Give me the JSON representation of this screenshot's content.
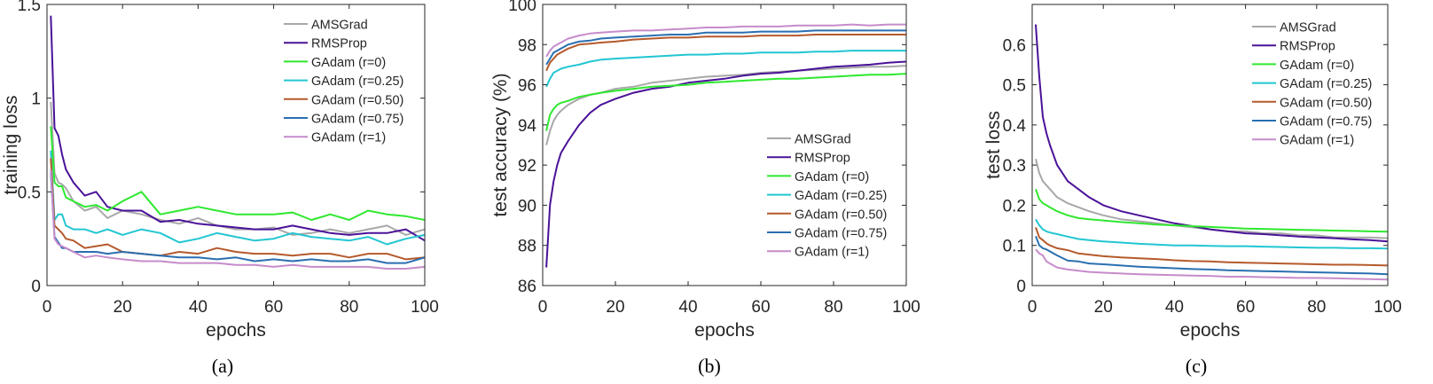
{
  "colors": {
    "AMSGrad": "#a8a8a8",
    "RMSProp": "#4a1298",
    "GAdam (r=0)": "#2fe82f",
    "GAdam (r=0.25)": "#22c6d2",
    "GAdam (r=0.50)": "#b55a2c",
    "GAdam (r=0.75)": "#2a6fb0",
    "GAdam (r=1)": "#c68ccb"
  },
  "chart_data": [
    {
      "type": "line",
      "caption": "(a)",
      "xlabel": "epochs",
      "ylabel": "training loss",
      "xlim": [
        0,
        100
      ],
      "ylim": [
        0,
        1.5
      ],
      "xticks": [
        0,
        20,
        40,
        60,
        80,
        100
      ],
      "yticks": [
        0,
        0.5,
        1,
        1.5
      ],
      "ytick_labels": [
        "0",
        "0.5",
        "1",
        "1.5"
      ],
      "grid": false,
      "legend": "top-right",
      "x": [
        1,
        2,
        3,
        4,
        5,
        7,
        10,
        13,
        16,
        20,
        25,
        30,
        35,
        40,
        45,
        50,
        55,
        60,
        65,
        70,
        75,
        80,
        85,
        90,
        95,
        100
      ],
      "series": [
        {
          "name": "AMSGrad",
          "values": [
            0.98,
            0.6,
            0.55,
            0.54,
            0.52,
            0.45,
            0.4,
            0.42,
            0.36,
            0.4,
            0.38,
            0.35,
            0.33,
            0.36,
            0.32,
            0.3,
            0.3,
            0.31,
            0.27,
            0.28,
            0.3,
            0.28,
            0.3,
            0.32,
            0.27,
            0.3
          ]
        },
        {
          "name": "RMSProp",
          "values": [
            1.44,
            0.84,
            0.8,
            0.7,
            0.62,
            0.55,
            0.48,
            0.5,
            0.42,
            0.4,
            0.4,
            0.34,
            0.35,
            0.33,
            0.32,
            0.31,
            0.3,
            0.3,
            0.32,
            0.3,
            0.28,
            0.27,
            0.28,
            0.28,
            0.3,
            0.24
          ]
        },
        {
          "name": "GAdam (r=0)",
          "values": [
            0.85,
            0.55,
            0.53,
            0.53,
            0.47,
            0.45,
            0.42,
            0.43,
            0.4,
            0.45,
            0.5,
            0.38,
            0.4,
            0.42,
            0.4,
            0.38,
            0.38,
            0.38,
            0.39,
            0.35,
            0.38,
            0.35,
            0.4,
            0.38,
            0.37,
            0.35
          ]
        },
        {
          "name": "GAdam (r=0.25)",
          "values": [
            0.72,
            0.35,
            0.38,
            0.38,
            0.32,
            0.3,
            0.3,
            0.28,
            0.3,
            0.27,
            0.3,
            0.28,
            0.23,
            0.25,
            0.28,
            0.26,
            0.24,
            0.25,
            0.28,
            0.26,
            0.25,
            0.24,
            0.26,
            0.22,
            0.25,
            0.27
          ]
        },
        {
          "name": "GAdam (r=0.50)",
          "values": [
            0.68,
            0.32,
            0.3,
            0.28,
            0.25,
            0.24,
            0.2,
            0.21,
            0.22,
            0.18,
            0.17,
            0.16,
            0.18,
            0.17,
            0.2,
            0.18,
            0.17,
            0.17,
            0.16,
            0.17,
            0.17,
            0.15,
            0.17,
            0.17,
            0.14,
            0.15
          ]
        },
        {
          "name": "GAdam (r=0.75)",
          "values": [
            0.6,
            0.26,
            0.23,
            0.2,
            0.2,
            0.18,
            0.18,
            0.18,
            0.17,
            0.18,
            0.17,
            0.16,
            0.15,
            0.15,
            0.14,
            0.15,
            0.13,
            0.14,
            0.13,
            0.14,
            0.13,
            0.13,
            0.14,
            0.12,
            0.12,
            0.15
          ]
        },
        {
          "name": "GAdam (r=1)",
          "values": [
            0.62,
            0.25,
            0.22,
            0.21,
            0.2,
            0.18,
            0.15,
            0.16,
            0.15,
            0.14,
            0.13,
            0.13,
            0.12,
            0.12,
            0.12,
            0.11,
            0.11,
            0.1,
            0.11,
            0.1,
            0.1,
            0.1,
            0.1,
            0.09,
            0.09,
            0.1
          ]
        }
      ]
    },
    {
      "type": "line",
      "caption": "(b)",
      "xlabel": "epochs",
      "ylabel": "test accuracy (%)",
      "xlim": [
        0,
        100
      ],
      "ylim": [
        86,
        100
      ],
      "xticks": [
        0,
        20,
        40,
        60,
        80,
        100
      ],
      "yticks": [
        86,
        88,
        90,
        92,
        94,
        96,
        98,
        100
      ],
      "ytick_labels": [
        "86",
        "88",
        "90",
        "92",
        "94",
        "96",
        "98",
        "100"
      ],
      "grid": false,
      "legend": "bottom-right",
      "x": [
        1,
        2,
        3,
        4,
        5,
        7,
        10,
        13,
        16,
        20,
        25,
        30,
        35,
        40,
        45,
        50,
        55,
        60,
        65,
        70,
        75,
        80,
        85,
        90,
        95,
        100
      ],
      "series": [
        {
          "name": "AMSGrad",
          "values": [
            93.0,
            93.7,
            94.2,
            94.5,
            94.7,
            95.0,
            95.3,
            95.5,
            95.6,
            95.8,
            95.9,
            96.1,
            96.2,
            96.3,
            96.4,
            96.45,
            96.5,
            96.6,
            96.65,
            96.7,
            96.75,
            96.8,
            96.85,
            96.9,
            96.9,
            96.95
          ]
        },
        {
          "name": "RMSProp",
          "values": [
            86.9,
            90.0,
            91.2,
            92.0,
            92.6,
            93.2,
            94.0,
            94.6,
            95.0,
            95.3,
            95.6,
            95.8,
            95.9,
            96.1,
            96.2,
            96.3,
            96.45,
            96.55,
            96.6,
            96.7,
            96.8,
            96.9,
            96.95,
            97.0,
            97.1,
            97.15
          ]
        },
        {
          "name": "GAdam (r=0)",
          "values": [
            93.7,
            94.5,
            94.8,
            95.0,
            95.1,
            95.2,
            95.4,
            95.5,
            95.6,
            95.7,
            95.8,
            95.9,
            95.95,
            96.0,
            96.1,
            96.15,
            96.2,
            96.25,
            96.3,
            96.3,
            96.35,
            96.4,
            96.45,
            96.5,
            96.5,
            96.55
          ]
        },
        {
          "name": "GAdam (r=0.25)",
          "values": [
            95.9,
            96.3,
            96.6,
            96.7,
            96.8,
            96.9,
            97.0,
            97.15,
            97.25,
            97.3,
            97.35,
            97.4,
            97.45,
            97.5,
            97.5,
            97.55,
            97.55,
            97.6,
            97.6,
            97.6,
            97.65,
            97.65,
            97.7,
            97.7,
            97.7,
            97.7
          ]
        },
        {
          "name": "GAdam (r=0.50)",
          "values": [
            96.7,
            97.1,
            97.3,
            97.5,
            97.6,
            97.8,
            98.0,
            98.05,
            98.1,
            98.15,
            98.25,
            98.3,
            98.35,
            98.35,
            98.4,
            98.4,
            98.4,
            98.45,
            98.45,
            98.45,
            98.5,
            98.5,
            98.5,
            98.5,
            98.5,
            98.5
          ]
        },
        {
          "name": "GAdam (r=0.75)",
          "values": [
            97.0,
            97.3,
            97.6,
            97.7,
            97.8,
            98.0,
            98.15,
            98.2,
            98.3,
            98.35,
            98.4,
            98.45,
            98.5,
            98.5,
            98.6,
            98.6,
            98.6,
            98.65,
            98.65,
            98.65,
            98.7,
            98.7,
            98.7,
            98.7,
            98.7,
            98.7
          ]
        },
        {
          "name": "GAdam (r=1)",
          "values": [
            97.4,
            97.7,
            97.9,
            98.0,
            98.1,
            98.3,
            98.45,
            98.55,
            98.6,
            98.65,
            98.7,
            98.7,
            98.75,
            98.8,
            98.85,
            98.85,
            98.9,
            98.9,
            98.9,
            98.95,
            98.95,
            98.95,
            99.0,
            98.95,
            99.0,
            99.0
          ]
        }
      ]
    },
    {
      "type": "line",
      "caption": "(c)",
      "xlabel": "epochs",
      "ylabel": "test loss",
      "xlim": [
        0,
        100
      ],
      "ylim": [
        0,
        0.7
      ],
      "xticks": [
        0,
        20,
        40,
        60,
        80,
        100
      ],
      "yticks": [
        0,
        0.1,
        0.2,
        0.3,
        0.4,
        0.5,
        0.6
      ],
      "ytick_labels": [
        "0",
        "0.1",
        "0.2",
        "0.3",
        "0.4",
        "0.5",
        "0.6"
      ],
      "grid": false,
      "legend": "top-right",
      "x": [
        1,
        2,
        3,
        4,
        5,
        7,
        10,
        13,
        16,
        20,
        25,
        30,
        35,
        40,
        45,
        50,
        55,
        60,
        65,
        70,
        75,
        80,
        85,
        90,
        95,
        100
      ],
      "series": [
        {
          "name": "AMSGrad",
          "values": [
            0.315,
            0.28,
            0.26,
            0.25,
            0.24,
            0.22,
            0.205,
            0.195,
            0.185,
            0.175,
            0.165,
            0.16,
            0.155,
            0.15,
            0.145,
            0.14,
            0.135,
            0.135,
            0.13,
            0.13,
            0.125,
            0.125,
            0.12,
            0.12,
            0.12,
            0.118
          ]
        },
        {
          "name": "RMSProp",
          "values": [
            0.65,
            0.52,
            0.42,
            0.38,
            0.35,
            0.3,
            0.26,
            0.24,
            0.22,
            0.2,
            0.185,
            0.175,
            0.165,
            0.155,
            0.148,
            0.14,
            0.135,
            0.13,
            0.128,
            0.125,
            0.122,
            0.12,
            0.118,
            0.115,
            0.113,
            0.11
          ]
        },
        {
          "name": "GAdam (r=0)",
          "values": [
            0.24,
            0.215,
            0.205,
            0.2,
            0.195,
            0.185,
            0.175,
            0.168,
            0.165,
            0.162,
            0.158,
            0.155,
            0.152,
            0.15,
            0.148,
            0.146,
            0.144,
            0.142,
            0.141,
            0.14,
            0.139,
            0.138,
            0.137,
            0.136,
            0.135,
            0.134
          ]
        },
        {
          "name": "GAdam (r=0.25)",
          "values": [
            0.165,
            0.15,
            0.14,
            0.135,
            0.132,
            0.128,
            0.122,
            0.116,
            0.113,
            0.11,
            0.107,
            0.104,
            0.102,
            0.1,
            0.1,
            0.099,
            0.098,
            0.098,
            0.097,
            0.096,
            0.095,
            0.094,
            0.094,
            0.093,
            0.093,
            0.092
          ]
        },
        {
          "name": "GAdam (r=0.50)",
          "values": [
            0.145,
            0.12,
            0.113,
            0.105,
            0.1,
            0.093,
            0.088,
            0.08,
            0.077,
            0.073,
            0.07,
            0.068,
            0.066,
            0.063,
            0.061,
            0.06,
            0.058,
            0.057,
            0.056,
            0.055,
            0.054,
            0.053,
            0.052,
            0.052,
            0.051,
            0.05
          ]
        },
        {
          "name": "GAdam (r=0.75)",
          "values": [
            0.123,
            0.1,
            0.093,
            0.09,
            0.085,
            0.075,
            0.062,
            0.06,
            0.055,
            0.053,
            0.05,
            0.047,
            0.045,
            0.043,
            0.041,
            0.04,
            0.038,
            0.037,
            0.036,
            0.035,
            0.034,
            0.033,
            0.032,
            0.031,
            0.03,
            0.028
          ]
        },
        {
          "name": "GAdam (r=1)",
          "values": [
            0.09,
            0.08,
            0.075,
            0.06,
            0.055,
            0.045,
            0.04,
            0.037,
            0.034,
            0.032,
            0.03,
            0.028,
            0.027,
            0.026,
            0.025,
            0.024,
            0.022,
            0.022,
            0.021,
            0.02,
            0.019,
            0.019,
            0.018,
            0.017,
            0.016,
            0.015
          ]
        }
      ]
    }
  ]
}
